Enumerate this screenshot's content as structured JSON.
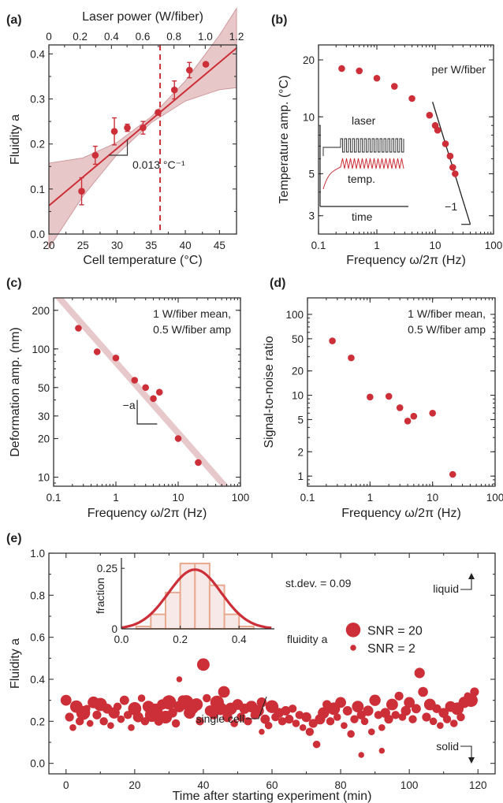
{
  "colors": {
    "accent": "#cc2f38",
    "band": "#e6c2c4",
    "line_gray": "#333333",
    "pale_red": "#e8c9cb",
    "hist": "#e8a98f"
  },
  "chart_data": [
    {
      "panel": "(a)",
      "type": "scatter",
      "xlabel": "Cell temperature (°C)",
      "x2label": "Laser power (W/fiber)",
      "ylabel": "Fluidity a",
      "xlim": [
        20,
        47.5
      ],
      "ylim": [
        0,
        0.42
      ],
      "xticks": [
        "20",
        "25",
        "30",
        "35",
        "40",
        "45"
      ],
      "x2ticks": [
        "0",
        "0.2",
        "0.4",
        "0.6",
        "0.8",
        "1.0",
        "1.2"
      ],
      "yticks": [
        "0.0",
        "0.1",
        "0.2",
        "0.3",
        "0.4"
      ],
      "points": [
        {
          "x": 24.8,
          "y": 0.095,
          "err": 0.03
        },
        {
          "x": 26.8,
          "y": 0.175,
          "err": 0.02
        },
        {
          "x": 29.6,
          "y": 0.228,
          "err": 0.03
        },
        {
          "x": 31.5,
          "y": 0.236,
          "err": 0.008
        },
        {
          "x": 33.8,
          "y": 0.236,
          "err": 0.014
        },
        {
          "x": 36.0,
          "y": 0.27,
          "err": 0.0
        },
        {
          "x": 38.4,
          "y": 0.32,
          "err": 0.02
        },
        {
          "x": 40.6,
          "y": 0.364,
          "err": 0.017
        },
        {
          "x": 43.0,
          "y": 0.377,
          "err": 0.0
        }
      ],
      "fit": {
        "x": [
          20,
          47.5
        ],
        "y": [
          0.063,
          0.413
        ]
      },
      "dashed_x": 36.3,
      "annotation": "0.013 °C⁻¹"
    },
    {
      "panel": "(b)",
      "type": "scatter",
      "xlabel": "Frequency ω/2π (Hz)",
      "ylabel": "Temperature amp. (°C)",
      "xscale": "log",
      "yscale": "log",
      "xlim": [
        0.1,
        100
      ],
      "ylim": [
        2.4,
        24
      ],
      "xticks": [
        "0.1",
        "1",
        "10",
        "100"
      ],
      "yticks": [
        "3",
        "5",
        "10",
        "20"
      ],
      "x": [
        0.25,
        0.5,
        1,
        2,
        4,
        8,
        10,
        11,
        15,
        18,
        20,
        22
      ],
      "y": [
        18,
        17.5,
        16,
        14.5,
        12.5,
        10.2,
        9,
        8.5,
        7.2,
        6.2,
        5.4,
        5.0
      ],
      "annotation": "per W/fiber",
      "slope_label": "−1",
      "inset": {
        "labels": [
          "laser",
          "temp.",
          "time"
        ]
      }
    },
    {
      "panel": "(c)",
      "type": "scatter",
      "xlabel": "Frequency ω/2π (Hz)",
      "ylabel": "Deformation amp. (nm)",
      "xscale": "log",
      "yscale": "log",
      "xlim": [
        0.1,
        100
      ],
      "ylim": [
        8.5,
        250
      ],
      "xticks": [
        "0.1",
        "1",
        "10",
        "100"
      ],
      "yticks": [
        "10",
        "20",
        "30",
        "50",
        "100",
        "200"
      ],
      "x": [
        0.25,
        0.5,
        1,
        2,
        3,
        4,
        5,
        10,
        21
      ],
      "y": [
        145,
        95,
        85,
        57,
        50,
        41,
        46,
        20,
        13
      ],
      "annotation": [
        "1 W/fiber mean,",
        "0.5 W/fiber amp"
      ],
      "slope_label": "−a"
    },
    {
      "panel": "(d)",
      "type": "scatter",
      "xlabel": "Frequency ω/2π (Hz)",
      "ylabel": "Signal-to-noise ratio",
      "xscale": "log",
      "yscale": "log",
      "xlim": [
        0.1,
        100
      ],
      "ylim": [
        0.75,
        160
      ],
      "xticks": [
        "0.1",
        "1",
        "10",
        "100"
      ],
      "yticks": [
        "1",
        "2",
        "5",
        "10",
        "20",
        "50",
        "100"
      ],
      "x": [
        0.25,
        0.5,
        1,
        2,
        3,
        4,
        5,
        10,
        21
      ],
      "y": [
        47,
        29,
        9.5,
        9.7,
        7,
        4.8,
        5.5,
        6,
        1.05
      ],
      "annotation": [
        "1 W/fiber mean,",
        "0.5 W/fiber amp"
      ]
    },
    {
      "panel": "(e)",
      "type": "scatter",
      "xlabel": "Time after starting experiment (min)",
      "ylabel": "Fluidity a",
      "xlim": [
        -5,
        125
      ],
      "ylim": [
        -0.05,
        1.0
      ],
      "xticks": [
        "0",
        "20",
        "40",
        "60",
        "80",
        "100",
        "120"
      ],
      "yticks": [
        "0.0",
        "0.2",
        "0.4",
        "0.6",
        "0.8",
        "1.0"
      ],
      "labels": {
        "liquid": "liquid",
        "solid": "solid",
        "single_cell": "single cell"
      },
      "legend": [
        {
          "label": "SNR = 20",
          "snr": 20
        },
        {
          "label": "SNR = 2",
          "snr": 2
        }
      ],
      "points": [
        [
          0,
          0.3,
          10
        ],
        [
          1,
          0.22,
          6
        ],
        [
          2,
          0.17,
          3
        ],
        [
          3,
          0.27,
          14
        ],
        [
          4,
          0.2,
          5
        ],
        [
          5,
          0.24,
          18
        ],
        [
          6,
          0.26,
          4
        ],
        [
          7,
          0.19,
          3
        ],
        [
          8,
          0.29,
          12
        ],
        [
          9,
          0.23,
          6
        ],
        [
          10,
          0.28,
          16
        ],
        [
          11,
          0.2,
          5
        ],
        [
          12,
          0.26,
          8
        ],
        [
          13,
          0.18,
          3
        ],
        [
          14,
          0.24,
          11
        ],
        [
          15,
          0.27,
          5
        ],
        [
          16,
          0.21,
          4
        ],
        [
          17,
          0.3,
          7
        ],
        [
          18,
          0.23,
          5
        ],
        [
          19,
          0.17,
          3
        ],
        [
          20,
          0.26,
          16
        ],
        [
          21,
          0.22,
          9
        ],
        [
          22,
          0.31,
          4
        ],
        [
          23,
          0.2,
          5
        ],
        [
          24,
          0.27,
          12
        ],
        [
          25,
          0.23,
          18
        ],
        [
          26,
          0.25,
          20
        ],
        [
          27,
          0.2,
          6
        ],
        [
          28,
          0.28,
          9
        ],
        [
          29,
          0.22,
          15
        ],
        [
          30,
          0.29,
          19
        ],
        [
          31,
          0.24,
          7
        ],
        [
          32,
          0.19,
          5
        ],
        [
          33,
          0.27,
          11
        ],
        [
          34,
          0.3,
          8
        ],
        [
          35,
          0.29,
          20
        ],
        [
          36,
          0.24,
          12
        ],
        [
          37,
          0.26,
          9
        ],
        [
          38,
          0.28,
          14
        ],
        [
          39,
          0.2,
          5
        ],
        [
          40,
          0.47,
          14
        ],
        [
          41,
          0.31,
          5
        ],
        [
          42,
          0.25,
          10
        ],
        [
          43,
          0.23,
          6
        ],
        [
          44,
          0.29,
          17
        ],
        [
          45,
          0.26,
          15
        ],
        [
          46,
          0.34,
          12
        ],
        [
          47,
          0.22,
          8
        ],
        [
          48,
          0.26,
          13
        ],
        [
          49,
          0.19,
          4
        ],
        [
          50,
          0.28,
          10
        ],
        [
          51,
          0.22,
          6
        ],
        [
          52,
          0.26,
          9
        ],
        [
          53,
          0.2,
          5
        ],
        [
          54,
          0.27,
          12
        ],
        [
          55,
          0.23,
          6
        ],
        [
          56,
          0.25,
          11
        ],
        [
          57,
          0.29,
          8
        ],
        [
          58,
          0.21,
          7
        ],
        [
          59,
          0.18,
          4
        ],
        [
          60,
          0.27,
          15
        ],
        [
          61,
          0.22,
          5
        ],
        [
          62,
          0.24,
          8
        ],
        [
          63,
          0.2,
          5
        ],
        [
          64,
          0.25,
          7
        ],
        [
          65,
          0.21,
          6
        ],
        [
          66,
          0.26,
          5
        ],
        [
          67,
          0.19,
          4
        ],
        [
          68,
          0.23,
          5
        ],
        [
          69,
          0.17,
          3
        ],
        [
          70,
          0.22,
          8
        ],
        [
          71,
          0.15,
          5
        ],
        [
          72,
          0.19,
          6
        ],
        [
          73,
          0.09,
          4
        ],
        [
          74,
          0.21,
          9
        ],
        [
          75,
          0.24,
          11
        ],
        [
          76,
          0.28,
          6
        ],
        [
          77,
          0.2,
          5
        ],
        [
          78,
          0.26,
          14
        ],
        [
          79,
          0.22,
          4
        ],
        [
          80,
          0.29,
          10
        ],
        [
          81,
          0.18,
          3
        ],
        [
          82,
          0.25,
          7
        ],
        [
          83,
          0.14,
          4
        ],
        [
          84,
          0.21,
          5
        ],
        [
          85,
          0.27,
          12
        ],
        [
          86,
          0.23,
          6
        ],
        [
          87,
          0.2,
          4
        ],
        [
          88,
          0.25,
          9
        ],
        [
          89,
          0.15,
          3
        ],
        [
          90,
          0.3,
          11
        ],
        [
          91,
          0.23,
          5
        ],
        [
          92,
          0.17,
          3
        ],
        [
          93,
          0.24,
          8
        ],
        [
          94,
          0.21,
          6
        ],
        [
          95,
          0.28,
          12
        ],
        [
          96,
          0.23,
          5
        ],
        [
          97,
          0.32,
          6
        ],
        [
          98,
          0.22,
          4
        ],
        [
          99,
          0.25,
          8
        ],
        [
          100,
          0.29,
          10
        ],
        [
          101,
          0.21,
          5
        ],
        [
          102,
          0.26,
          7
        ],
        [
          103,
          0.43,
          9
        ],
        [
          104,
          0.34,
          8
        ],
        [
          105,
          0.22,
          6
        ],
        [
          106,
          0.28,
          12
        ],
        [
          107,
          0.2,
          4
        ],
        [
          108,
          0.26,
          6
        ],
        [
          109,
          0.18,
          3
        ],
        [
          110,
          0.24,
          8
        ],
        [
          111,
          0.21,
          5
        ],
        [
          112,
          0.27,
          10
        ],
        [
          113,
          0.19,
          4
        ],
        [
          114,
          0.26,
          14
        ],
        [
          115,
          0.22,
          5
        ],
        [
          116,
          0.29,
          11
        ],
        [
          117,
          0.32,
          4
        ],
        [
          118,
          0.3,
          16
        ],
        [
          119,
          0.34,
          6
        ],
        [
          92,
          0.06,
          2
        ],
        [
          86,
          0.04,
          2
        ],
        [
          33,
          0.4,
          2
        ],
        [
          57,
          0.15,
          2
        ]
      ],
      "inset": {
        "xlabel": "fluidity a",
        "ylabel": "fraction",
        "xticks": [
          "0.0",
          "0.2",
          "0.4"
        ],
        "yticks": [
          "0",
          "0.25"
        ],
        "annotation": "st.dev. = 0.09",
        "bins": [
          0.0,
          0.05,
          0.1,
          0.15,
          0.2,
          0.25,
          0.3,
          0.35,
          0.4,
          0.45,
          0.5
        ],
        "fractions": [
          0.0,
          0.01,
          0.06,
          0.15,
          0.27,
          0.27,
          0.18,
          0.06,
          0.01,
          0.0
        ],
        "gauss": {
          "mean": 0.25,
          "sd": 0.09,
          "peak": 0.245
        }
      }
    }
  ]
}
